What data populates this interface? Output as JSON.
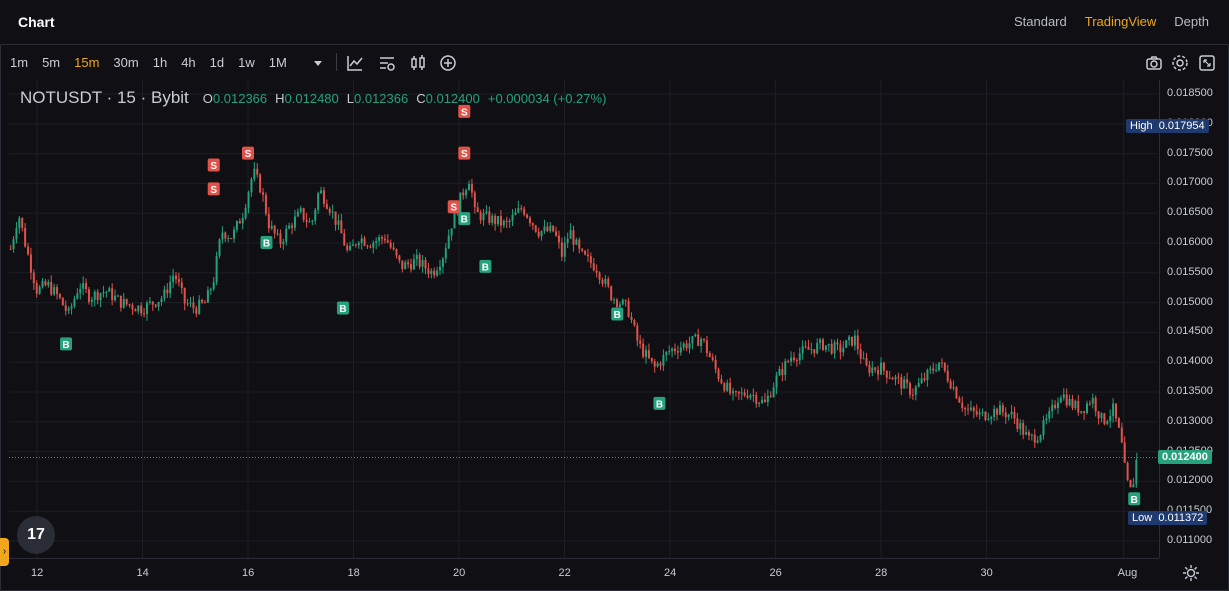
{
  "app": {
    "title": "Chart"
  },
  "view_tabs": [
    "Standard",
    "TradingView",
    "Depth"
  ],
  "active_view": "TradingView",
  "intervals": [
    "1m",
    "5m",
    "15m",
    "30m",
    "1h",
    "4h",
    "1d",
    "1w",
    "1M"
  ],
  "active_interval": "15m",
  "toolbar_icons": [
    "chevron-down-icon",
    "indicator-icon",
    "chart-settings-icon",
    "candle-type-icon",
    "add-icon",
    "camera-icon",
    "settings-icon",
    "fullscreen-icon"
  ],
  "legend": {
    "symbol": "NOTUSDT · 15 · Bybit",
    "open_label": "O",
    "open": "0.012366",
    "high_label": "H",
    "high": "0.012480",
    "low_label": "L",
    "low": "0.012366",
    "close_label": "C",
    "close": "0.012400",
    "change": "+0.000034 (+0.27%)"
  },
  "markers": {
    "high_label": "High",
    "high_value": "0.017954",
    "low_label": "Low",
    "low_value": "0.011372",
    "current_value": "0.012400"
  },
  "colors": {
    "up": "#26a17b",
    "down": "#e0524a",
    "accent": "#f0a71d",
    "label_bg": "#1f3a6e"
  },
  "chart_data": {
    "type": "candlestick",
    "symbol": "NOTUSDT",
    "interval": "15",
    "exchange": "Bybit",
    "y_ticks": [
      "0.018500",
      "0.018000",
      "0.017500",
      "0.017000",
      "0.016500",
      "0.016000",
      "0.015500",
      "0.015000",
      "0.014500",
      "0.014000",
      "0.013500",
      "0.013000",
      "0.012500",
      "0.012000",
      "0.011500",
      "0.011000"
    ],
    "x_ticks": [
      "12",
      "14",
      "16",
      "18",
      "20",
      "22",
      "24",
      "26",
      "28",
      "30",
      "Aug"
    ],
    "ylim": [
      0.0108,
      0.0188
    ],
    "xlim": [
      11.5,
      33.3
    ],
    "path": [
      [
        11.5,
        0.0159
      ],
      [
        11.65,
        0.0165
      ],
      [
        11.8,
        0.0159
      ],
      [
        12.0,
        0.0152
      ],
      [
        12.2,
        0.0153
      ],
      [
        12.4,
        0.0151
      ],
      [
        12.6,
        0.0148
      ],
      [
        12.8,
        0.0153
      ],
      [
        13.0,
        0.0151
      ],
      [
        13.3,
        0.0152
      ],
      [
        13.6,
        0.015
      ],
      [
        14.0,
        0.0149
      ],
      [
        14.2,
        0.015
      ],
      [
        14.4,
        0.0151
      ],
      [
        14.6,
        0.0155
      ],
      [
        14.8,
        0.015
      ],
      [
        15.0,
        0.0149
      ],
      [
        15.2,
        0.015
      ],
      [
        15.35,
        0.0154
      ],
      [
        15.5,
        0.0162
      ],
      [
        15.7,
        0.0161
      ],
      [
        15.9,
        0.0165
      ],
      [
        16.1,
        0.0172
      ],
      [
        16.25,
        0.0169
      ],
      [
        16.4,
        0.0163
      ],
      [
        16.6,
        0.016
      ],
      [
        16.8,
        0.0163
      ],
      [
        17.0,
        0.0165
      ],
      [
        17.2,
        0.0163
      ],
      [
        17.35,
        0.0169
      ],
      [
        17.55,
        0.0166
      ],
      [
        17.75,
        0.0162
      ],
      [
        17.9,
        0.0158
      ],
      [
        18.1,
        0.0161
      ],
      [
        18.3,
        0.016
      ],
      [
        18.6,
        0.0161
      ],
      [
        18.9,
        0.0156
      ],
      [
        19.2,
        0.0157
      ],
      [
        19.5,
        0.0155
      ],
      [
        19.7,
        0.0158
      ],
      [
        19.85,
        0.0163
      ],
      [
        20.05,
        0.0168
      ],
      [
        20.2,
        0.0171
      ],
      [
        20.3,
        0.0165
      ],
      [
        20.6,
        0.0164
      ],
      [
        20.9,
        0.0163
      ],
      [
        21.2,
        0.0166
      ],
      [
        21.5,
        0.0162
      ],
      [
        21.8,
        0.0162
      ],
      [
        21.95,
        0.0158
      ],
      [
        22.1,
        0.0162
      ],
      [
        22.3,
        0.0158
      ],
      [
        22.6,
        0.0156
      ],
      [
        22.9,
        0.0151
      ],
      [
        23.2,
        0.0149
      ],
      [
        23.4,
        0.0143
      ],
      [
        23.7,
        0.0139
      ],
      [
        24.0,
        0.0142
      ],
      [
        24.3,
        0.0143
      ],
      [
        24.6,
        0.0144
      ],
      [
        24.9,
        0.0138
      ],
      [
        25.2,
        0.0134
      ],
      [
        25.5,
        0.0135
      ],
      [
        25.8,
        0.0133
      ],
      [
        26.0,
        0.0137
      ],
      [
        26.3,
        0.0141
      ],
      [
        26.6,
        0.0142
      ],
      [
        26.9,
        0.0143
      ],
      [
        27.2,
        0.0142
      ],
      [
        27.5,
        0.0144
      ],
      [
        27.7,
        0.0139
      ],
      [
        28.0,
        0.0139
      ],
      [
        28.3,
        0.0137
      ],
      [
        28.6,
        0.0135
      ],
      [
        28.9,
        0.0138
      ],
      [
        29.1,
        0.014
      ],
      [
        29.3,
        0.0137
      ],
      [
        29.6,
        0.0132
      ],
      [
        29.9,
        0.0131
      ],
      [
        30.2,
        0.0132
      ],
      [
        30.5,
        0.0131
      ],
      [
        30.8,
        0.0127
      ],
      [
        31.0,
        0.0128
      ],
      [
        31.2,
        0.0131
      ],
      [
        31.4,
        0.0135
      ],
      [
        31.6,
        0.0133
      ],
      [
        31.8,
        0.0132
      ],
      [
        32.0,
        0.0134
      ],
      [
        32.2,
        0.013
      ],
      [
        32.4,
        0.0132
      ],
      [
        32.55,
        0.0127
      ],
      [
        32.65,
        0.012
      ],
      [
        32.75,
        0.0118
      ],
      [
        32.85,
        0.0124
      ]
    ],
    "buy_signals": [
      [
        12.55,
        0.0143
      ],
      [
        16.35,
        0.016
      ],
      [
        17.8,
        0.0149
      ],
      [
        20.1,
        0.0164
      ],
      [
        20.5,
        0.0156
      ],
      [
        23.0,
        0.0148
      ],
      [
        23.8,
        0.0133
      ],
      [
        32.8,
        0.0117
      ]
    ],
    "sell_signals": [
      [
        15.35,
        0.0169
      ],
      [
        15.35,
        0.0173
      ],
      [
        16.0,
        0.0175
      ],
      [
        19.9,
        0.0166
      ],
      [
        20.1,
        0.0175
      ],
      [
        20.1,
        0.0182
      ]
    ],
    "high": 0.017954,
    "low": 0.011372,
    "last": 0.0124
  }
}
